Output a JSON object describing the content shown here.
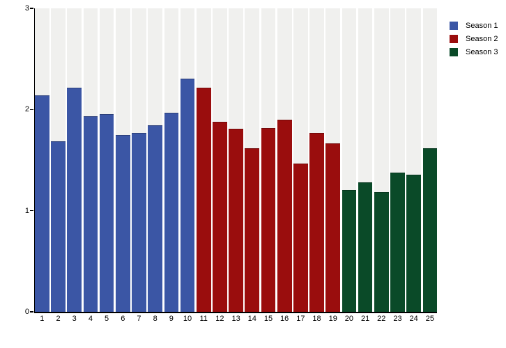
{
  "chart_data": {
    "type": "bar",
    "title": "",
    "xlabel": "",
    "ylabel": "",
    "categories": [
      "1",
      "2",
      "3",
      "4",
      "5",
      "6",
      "7",
      "8",
      "9",
      "10",
      "11",
      "12",
      "13",
      "14",
      "15",
      "16",
      "17",
      "18",
      "19",
      "20",
      "21",
      "22",
      "23",
      "24",
      "25"
    ],
    "series": [
      {
        "name": "Season 1",
        "color": "#3b56a5",
        "values": [
          2.13,
          1.68,
          2.21,
          1.93,
          1.95,
          1.74,
          1.76,
          1.84,
          1.96,
          2.3
        ]
      },
      {
        "name": "Season 2",
        "color": "#9a0d0d",
        "values": [
          2.21,
          1.87,
          1.8,
          1.61,
          1.81,
          1.89,
          1.46,
          1.76,
          1.66
        ]
      },
      {
        "name": "Season 3",
        "color": "#0a4a28",
        "values": [
          1.2,
          1.27,
          1.18,
          1.37,
          1.35,
          1.61
        ]
      }
    ],
    "ylim": [
      0,
      3
    ],
    "yticks": [
      0,
      1,
      2,
      3
    ],
    "grid": false,
    "legend_position": "top-right",
    "plot_band_color": "#f0f0ee",
    "background_color": "#ffffff",
    "axis_color": "#000000"
  }
}
